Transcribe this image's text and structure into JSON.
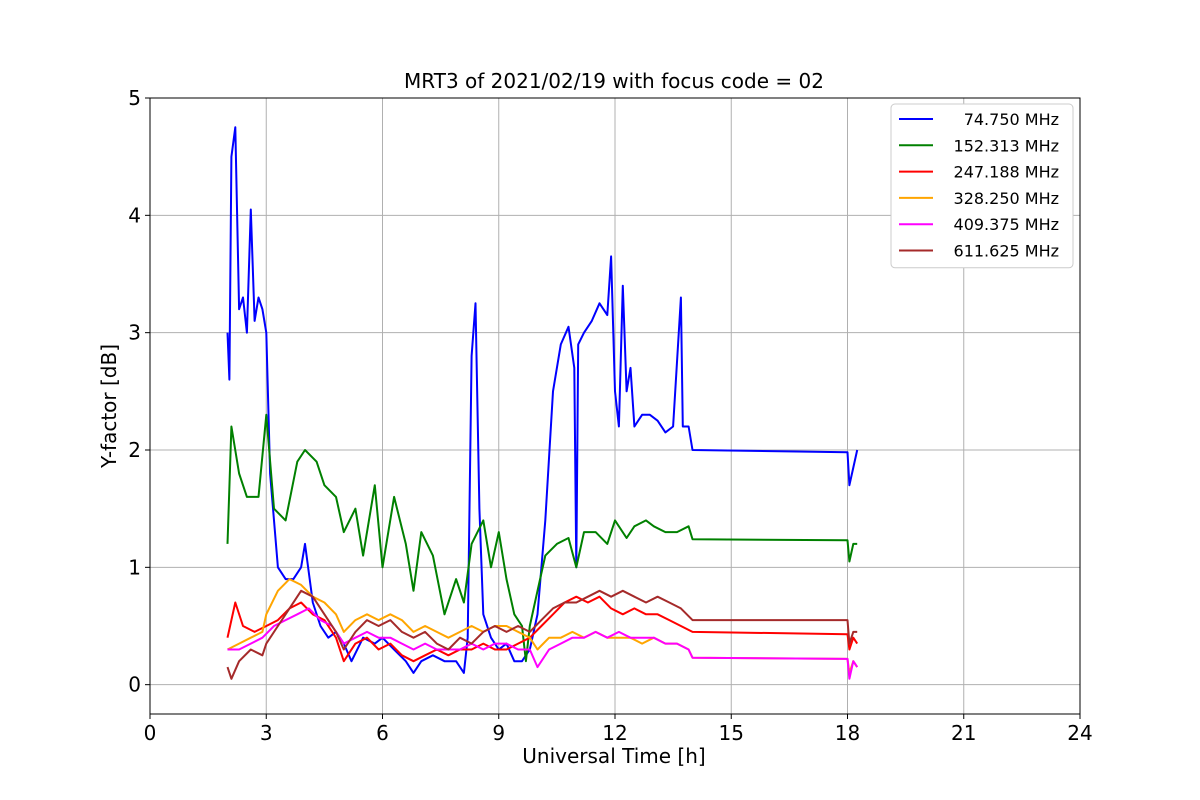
{
  "chart_data": {
    "type": "line",
    "title": "MRT3 of 2021/02/19 with focus code = 02",
    "xlabel": "Universal Time [h]",
    "ylabel": "Y-factor [dB]",
    "xlim": [
      0,
      24
    ],
    "ylim": [
      -0.25,
      5.0
    ],
    "xticks": [
      0,
      3,
      6,
      9,
      12,
      15,
      18,
      21,
      24
    ],
    "yticks": [
      0,
      1,
      2,
      3,
      4,
      5
    ],
    "grid": true,
    "legend_position": "top-right",
    "series": [
      {
        "name": "74.750 MHz",
        "color": "#0000ff",
        "points": [
          [
            2.0,
            3.0
          ],
          [
            2.05,
            2.6
          ],
          [
            2.1,
            4.5
          ],
          [
            2.2,
            4.75
          ],
          [
            2.3,
            3.2
          ],
          [
            2.4,
            3.3
          ],
          [
            2.5,
            3.0
          ],
          [
            2.6,
            4.05
          ],
          [
            2.7,
            3.1
          ],
          [
            2.8,
            3.3
          ],
          [
            2.9,
            3.2
          ],
          [
            3.0,
            3.0
          ],
          [
            3.1,
            1.8
          ],
          [
            3.3,
            1.0
          ],
          [
            3.5,
            0.9
          ],
          [
            3.7,
            0.9
          ],
          [
            3.9,
            1.0
          ],
          [
            4.0,
            1.2
          ],
          [
            4.2,
            0.7
          ],
          [
            4.4,
            0.5
          ],
          [
            4.6,
            0.4
          ],
          [
            4.8,
            0.45
          ],
          [
            5.0,
            0.35
          ],
          [
            5.2,
            0.2
          ],
          [
            5.5,
            0.4
          ],
          [
            5.8,
            0.35
          ],
          [
            6.0,
            0.4
          ],
          [
            6.3,
            0.3
          ],
          [
            6.6,
            0.2
          ],
          [
            6.8,
            0.1
          ],
          [
            7.0,
            0.2
          ],
          [
            7.3,
            0.25
          ],
          [
            7.6,
            0.2
          ],
          [
            7.9,
            0.2
          ],
          [
            8.1,
            0.1
          ],
          [
            8.2,
            0.4
          ],
          [
            8.3,
            2.8
          ],
          [
            8.4,
            3.25
          ],
          [
            8.5,
            1.5
          ],
          [
            8.6,
            0.6
          ],
          [
            8.8,
            0.4
          ],
          [
            9.0,
            0.3
          ],
          [
            9.2,
            0.35
          ],
          [
            9.4,
            0.2
          ],
          [
            9.6,
            0.2
          ],
          [
            9.8,
            0.3
          ],
          [
            10.0,
            0.6
          ],
          [
            10.2,
            1.4
          ],
          [
            10.4,
            2.5
          ],
          [
            10.6,
            2.9
          ],
          [
            10.8,
            3.05
          ],
          [
            10.95,
            2.7
          ],
          [
            11.0,
            1.0
          ],
          [
            11.05,
            2.9
          ],
          [
            11.2,
            3.0
          ],
          [
            11.4,
            3.1
          ],
          [
            11.6,
            3.25
          ],
          [
            11.8,
            3.15
          ],
          [
            11.9,
            3.65
          ],
          [
            12.0,
            2.5
          ],
          [
            12.1,
            2.2
          ],
          [
            12.2,
            3.4
          ],
          [
            12.3,
            2.5
          ],
          [
            12.4,
            2.7
          ],
          [
            12.5,
            2.2
          ],
          [
            12.7,
            2.3
          ],
          [
            12.9,
            2.3
          ],
          [
            13.1,
            2.25
          ],
          [
            13.3,
            2.15
          ],
          [
            13.5,
            2.2
          ],
          [
            13.7,
            3.3
          ],
          [
            13.75,
            2.2
          ],
          [
            13.9,
            2.2
          ],
          [
            14.0,
            2.0
          ],
          [
            18.0,
            1.98
          ],
          [
            18.05,
            1.7
          ],
          [
            18.15,
            1.85
          ],
          [
            18.25,
            2.0
          ]
        ]
      },
      {
        "name": "152.313 MHz",
        "color": "#008000",
        "points": [
          [
            2.0,
            1.2
          ],
          [
            2.1,
            2.2
          ],
          [
            2.3,
            1.8
          ],
          [
            2.5,
            1.6
          ],
          [
            2.8,
            1.6
          ],
          [
            3.0,
            2.3
          ],
          [
            3.2,
            1.5
          ],
          [
            3.5,
            1.4
          ],
          [
            3.8,
            1.9
          ],
          [
            4.0,
            2.0
          ],
          [
            4.3,
            1.9
          ],
          [
            4.5,
            1.7
          ],
          [
            4.8,
            1.6
          ],
          [
            5.0,
            1.3
          ],
          [
            5.3,
            1.5
          ],
          [
            5.5,
            1.1
          ],
          [
            5.8,
            1.7
          ],
          [
            6.0,
            1.0
          ],
          [
            6.3,
            1.6
          ],
          [
            6.6,
            1.2
          ],
          [
            6.8,
            0.8
          ],
          [
            7.0,
            1.3
          ],
          [
            7.3,
            1.1
          ],
          [
            7.6,
            0.6
          ],
          [
            7.9,
            0.9
          ],
          [
            8.1,
            0.7
          ],
          [
            8.3,
            1.2
          ],
          [
            8.6,
            1.4
          ],
          [
            8.8,
            1.0
          ],
          [
            9.0,
            1.3
          ],
          [
            9.2,
            0.9
          ],
          [
            9.4,
            0.6
          ],
          [
            9.6,
            0.5
          ],
          [
            9.7,
            0.2
          ],
          [
            9.8,
            0.5
          ],
          [
            10.0,
            0.8
          ],
          [
            10.2,
            1.1
          ],
          [
            10.5,
            1.2
          ],
          [
            10.8,
            1.25
          ],
          [
            11.0,
            1.0
          ],
          [
            11.2,
            1.3
          ],
          [
            11.5,
            1.3
          ],
          [
            11.8,
            1.2
          ],
          [
            12.0,
            1.4
          ],
          [
            12.3,
            1.25
          ],
          [
            12.5,
            1.35
          ],
          [
            12.8,
            1.4
          ],
          [
            13.0,
            1.35
          ],
          [
            13.3,
            1.3
          ],
          [
            13.6,
            1.3
          ],
          [
            13.9,
            1.35
          ],
          [
            14.0,
            1.24
          ],
          [
            18.0,
            1.23
          ],
          [
            18.05,
            1.05
          ],
          [
            18.15,
            1.2
          ],
          [
            18.25,
            1.2
          ]
        ]
      },
      {
        "name": "247.188 MHz",
        "color": "#ff0000",
        "points": [
          [
            2.0,
            0.4
          ],
          [
            2.2,
            0.7
          ],
          [
            2.4,
            0.5
          ],
          [
            2.7,
            0.45
          ],
          [
            3.0,
            0.5
          ],
          [
            3.3,
            0.55
          ],
          [
            3.6,
            0.65
          ],
          [
            3.9,
            0.7
          ],
          [
            4.2,
            0.6
          ],
          [
            4.5,
            0.55
          ],
          [
            4.8,
            0.4
          ],
          [
            5.0,
            0.2
          ],
          [
            5.3,
            0.35
          ],
          [
            5.6,
            0.4
          ],
          [
            5.9,
            0.3
          ],
          [
            6.2,
            0.35
          ],
          [
            6.5,
            0.25
          ],
          [
            6.8,
            0.2
          ],
          [
            7.1,
            0.25
          ],
          [
            7.4,
            0.3
          ],
          [
            7.7,
            0.25
          ],
          [
            8.0,
            0.3
          ],
          [
            8.3,
            0.3
          ],
          [
            8.6,
            0.35
          ],
          [
            8.9,
            0.3
          ],
          [
            9.2,
            0.3
          ],
          [
            9.5,
            0.35
          ],
          [
            9.8,
            0.4
          ],
          [
            10.1,
            0.5
          ],
          [
            10.4,
            0.6
          ],
          [
            10.7,
            0.7
          ],
          [
            11.0,
            0.75
          ],
          [
            11.3,
            0.7
          ],
          [
            11.6,
            0.75
          ],
          [
            11.9,
            0.65
          ],
          [
            12.2,
            0.6
          ],
          [
            12.5,
            0.65
          ],
          [
            12.8,
            0.6
          ],
          [
            13.1,
            0.6
          ],
          [
            13.4,
            0.55
          ],
          [
            13.7,
            0.5
          ],
          [
            14.0,
            0.45
          ],
          [
            18.0,
            0.43
          ],
          [
            18.05,
            0.3
          ],
          [
            18.15,
            0.4
          ],
          [
            18.25,
            0.35
          ]
        ]
      },
      {
        "name": "328.250 MHz",
        "color": "#ffa500",
        "points": [
          [
            2.0,
            0.3
          ],
          [
            2.3,
            0.35
          ],
          [
            2.6,
            0.4
          ],
          [
            2.9,
            0.45
          ],
          [
            3.0,
            0.6
          ],
          [
            3.3,
            0.8
          ],
          [
            3.6,
            0.9
          ],
          [
            3.9,
            0.85
          ],
          [
            4.2,
            0.75
          ],
          [
            4.5,
            0.7
          ],
          [
            4.8,
            0.6
          ],
          [
            5.0,
            0.45
          ],
          [
            5.3,
            0.55
          ],
          [
            5.6,
            0.6
          ],
          [
            5.9,
            0.55
          ],
          [
            6.2,
            0.6
          ],
          [
            6.5,
            0.55
          ],
          [
            6.8,
            0.45
          ],
          [
            7.1,
            0.5
          ],
          [
            7.4,
            0.45
          ],
          [
            7.7,
            0.4
          ],
          [
            8.0,
            0.45
          ],
          [
            8.3,
            0.5
          ],
          [
            8.6,
            0.45
          ],
          [
            8.9,
            0.5
          ],
          [
            9.2,
            0.5
          ],
          [
            9.5,
            0.45
          ],
          [
            9.8,
            0.4
          ],
          [
            10.0,
            0.3
          ],
          [
            10.3,
            0.4
          ],
          [
            10.6,
            0.4
          ],
          [
            10.9,
            0.45
          ],
          [
            11.2,
            0.4
          ],
          [
            11.5,
            0.45
          ],
          [
            11.8,
            0.4
          ],
          [
            12.1,
            0.4
          ],
          [
            12.4,
            0.4
          ],
          [
            12.7,
            0.35
          ],
          [
            13.0,
            0.4
          ],
          [
            13.3,
            0.35
          ],
          [
            13.6,
            0.35
          ],
          [
            13.9,
            0.3
          ],
          [
            14.0,
            0.23
          ],
          [
            18.0,
            0.22
          ],
          [
            18.05,
            0.1
          ],
          [
            18.15,
            0.2
          ],
          [
            18.25,
            0.15
          ]
        ]
      },
      {
        "name": "409.375 MHz",
        "color": "#ff00ff",
        "points": [
          [
            2.0,
            0.3
          ],
          [
            2.3,
            0.3
          ],
          [
            2.6,
            0.35
          ],
          [
            2.9,
            0.4
          ],
          [
            3.2,
            0.5
          ],
          [
            3.5,
            0.55
          ],
          [
            3.8,
            0.6
          ],
          [
            4.1,
            0.65
          ],
          [
            4.4,
            0.55
          ],
          [
            4.7,
            0.5
          ],
          [
            5.0,
            0.35
          ],
          [
            5.3,
            0.4
          ],
          [
            5.6,
            0.45
          ],
          [
            5.9,
            0.4
          ],
          [
            6.2,
            0.4
          ],
          [
            6.5,
            0.35
          ],
          [
            6.8,
            0.3
          ],
          [
            7.1,
            0.35
          ],
          [
            7.4,
            0.3
          ],
          [
            7.7,
            0.3
          ],
          [
            8.0,
            0.3
          ],
          [
            8.3,
            0.35
          ],
          [
            8.6,
            0.3
          ],
          [
            8.9,
            0.35
          ],
          [
            9.2,
            0.35
          ],
          [
            9.5,
            0.3
          ],
          [
            9.8,
            0.3
          ],
          [
            10.0,
            0.15
          ],
          [
            10.3,
            0.3
          ],
          [
            10.6,
            0.35
          ],
          [
            10.9,
            0.4
          ],
          [
            11.2,
            0.4
          ],
          [
            11.5,
            0.45
          ],
          [
            11.8,
            0.4
          ],
          [
            12.1,
            0.45
          ],
          [
            12.4,
            0.4
          ],
          [
            12.7,
            0.4
          ],
          [
            13.0,
            0.4
          ],
          [
            13.3,
            0.35
          ],
          [
            13.6,
            0.35
          ],
          [
            13.9,
            0.3
          ],
          [
            14.0,
            0.23
          ],
          [
            18.0,
            0.22
          ],
          [
            18.05,
            0.05
          ],
          [
            18.15,
            0.2
          ],
          [
            18.25,
            0.15
          ]
        ]
      },
      {
        "name": "611.625 MHz",
        "color": "#a52a2a",
        "points": [
          [
            2.0,
            0.15
          ],
          [
            2.1,
            0.05
          ],
          [
            2.3,
            0.2
          ],
          [
            2.6,
            0.3
          ],
          [
            2.9,
            0.25
          ],
          [
            3.0,
            0.35
          ],
          [
            3.3,
            0.5
          ],
          [
            3.6,
            0.65
          ],
          [
            3.9,
            0.8
          ],
          [
            4.2,
            0.75
          ],
          [
            4.5,
            0.6
          ],
          [
            4.8,
            0.45
          ],
          [
            5.0,
            0.3
          ],
          [
            5.3,
            0.45
          ],
          [
            5.6,
            0.55
          ],
          [
            5.9,
            0.5
          ],
          [
            6.2,
            0.55
          ],
          [
            6.5,
            0.45
          ],
          [
            6.8,
            0.4
          ],
          [
            7.1,
            0.45
          ],
          [
            7.4,
            0.35
          ],
          [
            7.7,
            0.3
          ],
          [
            8.0,
            0.4
          ],
          [
            8.3,
            0.35
          ],
          [
            8.6,
            0.45
          ],
          [
            8.9,
            0.5
          ],
          [
            9.2,
            0.45
          ],
          [
            9.5,
            0.5
          ],
          [
            9.8,
            0.45
          ],
          [
            10.1,
            0.55
          ],
          [
            10.4,
            0.65
          ],
          [
            10.7,
            0.7
          ],
          [
            11.0,
            0.7
          ],
          [
            11.3,
            0.75
          ],
          [
            11.6,
            0.8
          ],
          [
            11.9,
            0.75
          ],
          [
            12.2,
            0.8
          ],
          [
            12.5,
            0.75
          ],
          [
            12.8,
            0.7
          ],
          [
            13.1,
            0.75
          ],
          [
            13.4,
            0.7
          ],
          [
            13.7,
            0.65
          ],
          [
            14.0,
            0.55
          ],
          [
            18.0,
            0.55
          ],
          [
            18.05,
            0.35
          ],
          [
            18.15,
            0.45
          ],
          [
            18.25,
            0.45
          ]
        ]
      }
    ]
  }
}
